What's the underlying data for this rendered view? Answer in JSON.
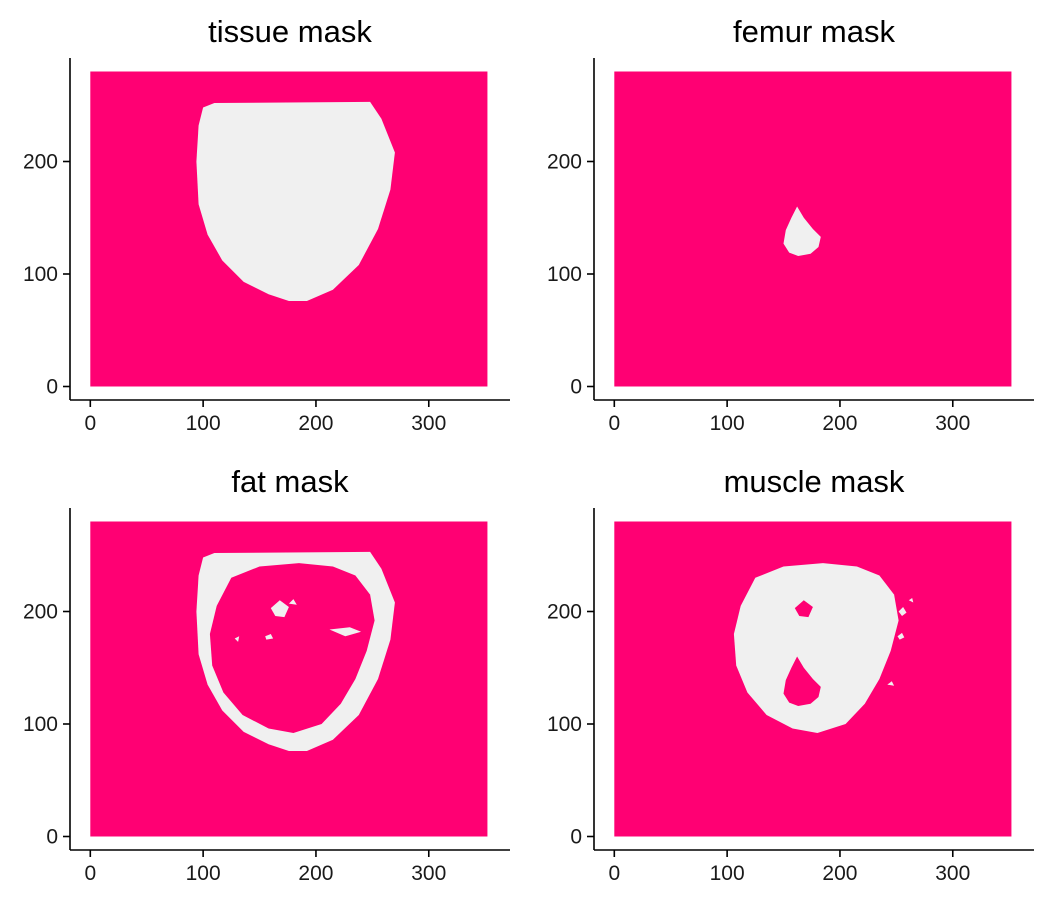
{
  "colors": {
    "background": "#ff0073",
    "mask": "#f0f0f0",
    "axis": "#000000"
  },
  "chart_data": [
    {
      "type": "heatmap",
      "title": "tissue mask",
      "xlabel": "",
      "ylabel": "",
      "x_range": [
        0,
        352
      ],
      "y_range": [
        0,
        280
      ],
      "xlim": [
        -18,
        372
      ],
      "ylim": [
        -12,
        292
      ],
      "x_ticks": [
        0,
        100,
        200,
        300
      ],
      "y_ticks": [
        0,
        100,
        200
      ],
      "mask_regions": [
        {
          "kind": "fill",
          "points": [
            [
              100,
              248
            ],
            [
              110,
              252
            ],
            [
              248,
              253
            ],
            [
              258,
              238
            ],
            [
              270,
              208
            ],
            [
              266,
              175
            ],
            [
              255,
              140
            ],
            [
              238,
              108
            ],
            [
              215,
              86
            ],
            [
              192,
              76
            ],
            [
              176,
              76
            ],
            [
              158,
              82
            ],
            [
              136,
              93
            ],
            [
              117,
              112
            ],
            [
              104,
              135
            ],
            [
              96,
              162
            ],
            [
              94,
              200
            ],
            [
              96,
              232
            ]
          ]
        }
      ]
    },
    {
      "type": "heatmap",
      "title": "femur mask",
      "xlabel": "",
      "ylabel": "",
      "x_range": [
        0,
        352
      ],
      "y_range": [
        0,
        280
      ],
      "xlim": [
        -18,
        372
      ],
      "ylim": [
        -12,
        292
      ],
      "x_ticks": [
        0,
        100,
        200,
        300
      ],
      "y_ticks": [
        0,
        100,
        200
      ],
      "mask_regions": [
        {
          "kind": "fill",
          "points": [
            [
              162,
              160
            ],
            [
              168,
              150
            ],
            [
              176,
              140
            ],
            [
              183,
              133
            ],
            [
              181,
              124
            ],
            [
              174,
              118
            ],
            [
              163,
              116
            ],
            [
              155,
              119
            ],
            [
              150,
              127
            ],
            [
              152,
              139
            ],
            [
              157,
              150
            ]
          ]
        }
      ]
    },
    {
      "type": "heatmap",
      "title": "fat mask",
      "xlabel": "",
      "ylabel": "",
      "x_range": [
        0,
        352
      ],
      "y_range": [
        0,
        280
      ],
      "xlim": [
        -18,
        372
      ],
      "ylim": [
        -12,
        292
      ],
      "x_ticks": [
        0,
        100,
        200,
        300
      ],
      "y_ticks": [
        0,
        100,
        200
      ],
      "mask_regions": [
        {
          "kind": "fill",
          "points": [
            [
              100,
              248
            ],
            [
              110,
              252
            ],
            [
              248,
              253
            ],
            [
              258,
              238
            ],
            [
              270,
              208
            ],
            [
              266,
              175
            ],
            [
              255,
              140
            ],
            [
              238,
              108
            ],
            [
              215,
              86
            ],
            [
              192,
              76
            ],
            [
              176,
              76
            ],
            [
              158,
              82
            ],
            [
              136,
              93
            ],
            [
              117,
              112
            ],
            [
              104,
              135
            ],
            [
              96,
              162
            ],
            [
              94,
              200
            ],
            [
              96,
              232
            ]
          ]
        },
        {
          "kind": "hole",
          "points": [
            [
              125,
              230
            ],
            [
              150,
              240
            ],
            [
              185,
              243
            ],
            [
              215,
              240
            ],
            [
              235,
              232
            ],
            [
              248,
              215
            ],
            [
              252,
              192
            ],
            [
              245,
              165
            ],
            [
              235,
              140
            ],
            [
              222,
              118
            ],
            [
              205,
              100
            ],
            [
              180,
              92
            ],
            [
              158,
              96
            ],
            [
              135,
              108
            ],
            [
              118,
              128
            ],
            [
              108,
              152
            ],
            [
              106,
              180
            ],
            [
              112,
              205
            ]
          ]
        },
        {
          "kind": "fill",
          "points": [
            [
              160,
              203
            ],
            [
              168,
              210
            ],
            [
              176,
              204
            ],
            [
              172,
              195
            ],
            [
              164,
              196
            ]
          ]
        },
        {
          "kind": "fill",
          "points": [
            [
              212,
              184
            ],
            [
              230,
              186
            ],
            [
              240,
              182
            ],
            [
              226,
              178
            ]
          ]
        },
        {
          "kind": "fill",
          "points": [
            [
              155,
              178
            ],
            [
              160,
              180
            ],
            [
              162,
              176
            ],
            [
              156,
              175
            ]
          ]
        },
        {
          "kind": "fill",
          "points": [
            [
              208,
              100
            ],
            [
              222,
              108
            ],
            [
              230,
              122
            ],
            [
              218,
              113
            ]
          ]
        },
        {
          "kind": "fill",
          "points": [
            [
              176,
              207
            ],
            [
              180,
              211
            ],
            [
              183,
              206
            ]
          ]
        },
        {
          "kind": "fill",
          "points": [
            [
              128,
              176
            ],
            [
              132,
              178
            ],
            [
              131,
              173
            ]
          ]
        }
      ]
    },
    {
      "type": "heatmap",
      "title": "muscle mask",
      "xlabel": "",
      "ylabel": "",
      "x_range": [
        0,
        352
      ],
      "y_range": [
        0,
        280
      ],
      "xlim": [
        -18,
        372
      ],
      "ylim": [
        -12,
        292
      ],
      "x_ticks": [
        0,
        100,
        200,
        300
      ],
      "y_ticks": [
        0,
        100,
        200
      ],
      "mask_regions": [
        {
          "kind": "fill",
          "points": [
            [
              125,
              230
            ],
            [
              150,
              240
            ],
            [
              185,
              243
            ],
            [
              215,
              240
            ],
            [
              235,
              232
            ],
            [
              248,
              215
            ],
            [
              252,
              192
            ],
            [
              245,
              165
            ],
            [
              235,
              140
            ],
            [
              222,
              118
            ],
            [
              205,
              100
            ],
            [
              180,
              92
            ],
            [
              158,
              96
            ],
            [
              135,
              108
            ],
            [
              118,
              128
            ],
            [
              108,
              152
            ],
            [
              106,
              180
            ],
            [
              112,
              205
            ]
          ]
        },
        {
          "kind": "hole",
          "points": [
            [
              162,
              160
            ],
            [
              168,
              150
            ],
            [
              176,
              140
            ],
            [
              183,
              133
            ],
            [
              181,
              124
            ],
            [
              174,
              118
            ],
            [
              163,
              116
            ],
            [
              155,
              119
            ],
            [
              150,
              127
            ],
            [
              152,
              139
            ],
            [
              157,
              150
            ]
          ]
        },
        {
          "kind": "hole",
          "points": [
            [
              160,
              203
            ],
            [
              168,
              210
            ],
            [
              176,
              204
            ],
            [
              172,
              195
            ],
            [
              164,
              196
            ]
          ]
        },
        {
          "kind": "fill",
          "points": [
            [
              252,
              200
            ],
            [
              256,
              204
            ],
            [
              259,
              199
            ],
            [
              255,
              196
            ]
          ]
        },
        {
          "kind": "fill",
          "points": [
            [
              251,
              178
            ],
            [
              255,
              181
            ],
            [
              257,
              177
            ],
            [
              253,
              175
            ]
          ]
        },
        {
          "kind": "fill",
          "points": [
            [
              242,
              135
            ],
            [
              246,
              138
            ],
            [
              248,
              134
            ]
          ]
        },
        {
          "kind": "fill",
          "points": [
            [
              261,
              210
            ],
            [
              264,
              212
            ],
            [
              265,
              208
            ]
          ]
        }
      ]
    }
  ]
}
